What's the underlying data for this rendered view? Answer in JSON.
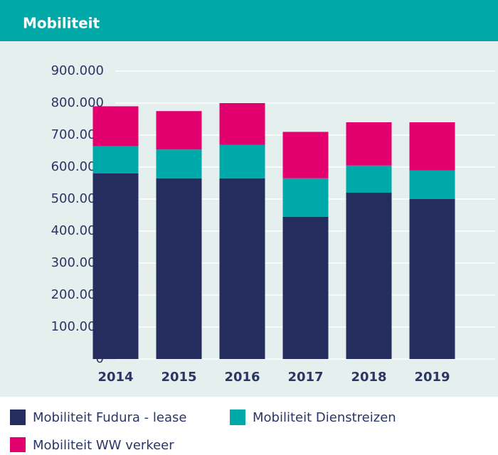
{
  "chart_data": {
    "type": "stacked_bar",
    "title": "Mobiliteit",
    "categories": [
      "2014",
      "2015",
      "2016",
      "2017",
      "2018",
      "2019"
    ],
    "series": [
      {
        "name": "Mobiliteit Fudura - lease",
        "color": "#252d5f",
        "values": [
          580000,
          565000,
          565000,
          445000,
          520000,
          500000
        ]
      },
      {
        "name": "Mobiliteit Dienstreizen",
        "color": "#00a9a9",
        "values": [
          85000,
          90000,
          105000,
          120000,
          85000,
          90000
        ]
      },
      {
        "name": "Mobiliteit WW verkeer",
        "color": "#e2006f",
        "values": [
          125000,
          120000,
          130000,
          145000,
          135000,
          150000
        ]
      }
    ],
    "ylim": [
      0,
      900000
    ],
    "yticks": [
      0,
      {
        "value": 100000,
        "label": "100.000"
      },
      {
        "value": 200000,
        "label": "200.000"
      },
      {
        "value": 300000,
        "label": "300.000"
      },
      {
        "value": 400000,
        "label": "400.000"
      },
      {
        "value": 500000,
        "label": "500.000"
      },
      {
        "value": 600000,
        "label": "600.000"
      },
      {
        "value": 700000,
        "label": "700.000"
      },
      {
        "value": 800000,
        "label": "800.000"
      },
      {
        "value": 900000,
        "label": "900.000"
      }
    ],
    "grid": true
  }
}
